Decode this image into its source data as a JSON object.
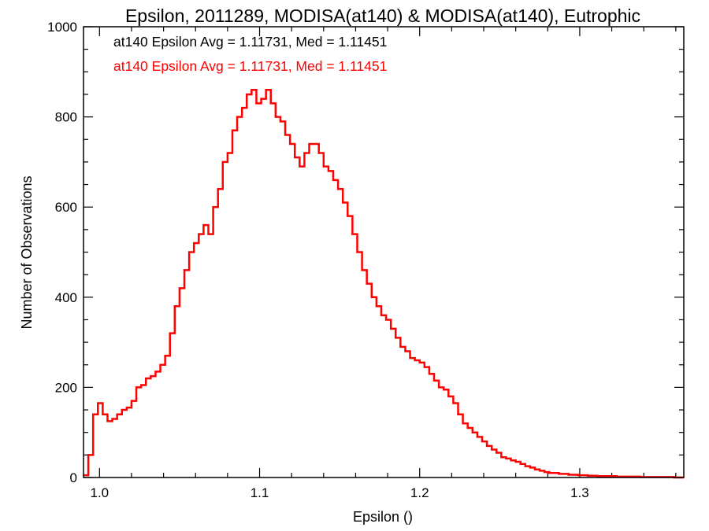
{
  "chart_data": {
    "type": "line",
    "title": "Epsilon, 2011289, MODISA(at140) & MODISA(at140), Eutrophic",
    "xlabel": "Epsilon ()",
    "ylabel": "Number of Observations",
    "xlim": [
      0.99,
      1.365
    ],
    "ylim": [
      0,
      1000
    ],
    "xticks": [
      1.0,
      1.1,
      1.2,
      1.3
    ],
    "xtick_labels": [
      "1.0",
      "1.1",
      "1.2",
      "1.3"
    ],
    "yticks": [
      0,
      200,
      400,
      600,
      800,
      1000
    ],
    "ytick_labels": [
      "0",
      "200",
      "400",
      "600",
      "800",
      "1000"
    ],
    "grid": false,
    "annotations": [
      {
        "text": "at140 Epsilon Avg = 1.11731, Med = 1.11451",
        "color": "#000000"
      },
      {
        "text": "at140 Epsilon Avg = 1.11731, Med = 1.11451",
        "color": "#ff0000"
      }
    ],
    "series": [
      {
        "color": "#ff0000",
        "x": [
          0.99,
          0.993,
          0.996,
          0.999,
          1.002,
          1.005,
          1.008,
          1.011,
          1.014,
          1.017,
          1.02,
          1.023,
          1.026,
          1.029,
          1.032,
          1.035,
          1.038,
          1.041,
          1.044,
          1.047,
          1.05,
          1.053,
          1.056,
          1.059,
          1.062,
          1.065,
          1.068,
          1.071,
          1.074,
          1.077,
          1.08,
          1.083,
          1.086,
          1.089,
          1.092,
          1.095,
          1.098,
          1.101,
          1.104,
          1.107,
          1.11,
          1.113,
          1.116,
          1.119,
          1.122,
          1.125,
          1.128,
          1.131,
          1.134,
          1.137,
          1.14,
          1.143,
          1.146,
          1.149,
          1.152,
          1.155,
          1.158,
          1.161,
          1.164,
          1.167,
          1.17,
          1.173,
          1.176,
          1.179,
          1.182,
          1.185,
          1.188,
          1.191,
          1.194,
          1.197,
          1.2,
          1.203,
          1.206,
          1.209,
          1.212,
          1.215,
          1.218,
          1.221,
          1.224,
          1.227,
          1.23,
          1.233,
          1.236,
          1.239,
          1.242,
          1.245,
          1.248,
          1.251,
          1.254,
          1.257,
          1.26,
          1.263,
          1.266,
          1.269,
          1.272,
          1.275,
          1.278,
          1.281,
          1.284,
          1.287,
          1.29,
          1.293,
          1.296,
          1.299,
          1.302,
          1.305,
          1.308,
          1.311,
          1.314,
          1.317,
          1.32,
          1.323,
          1.326,
          1.329,
          1.332,
          1.335,
          1.338,
          1.341,
          1.344,
          1.347,
          1.35,
          1.353,
          1.356,
          1.359,
          1.362
        ],
        "values": [
          5,
          50,
          140,
          165,
          140,
          125,
          130,
          140,
          150,
          155,
          170,
          200,
          205,
          220,
          225,
          235,
          250,
          270,
          320,
          380,
          420,
          460,
          500,
          520,
          540,
          560,
          540,
          600,
          640,
          700,
          720,
          770,
          800,
          820,
          850,
          860,
          830,
          840,
          860,
          830,
          800,
          790,
          760,
          740,
          710,
          690,
          720,
          740,
          740,
          720,
          690,
          680,
          660,
          640,
          610,
          580,
          540,
          500,
          460,
          430,
          400,
          380,
          360,
          350,
          330,
          310,
          290,
          280,
          265,
          260,
          255,
          245,
          230,
          215,
          200,
          195,
          180,
          165,
          140,
          120,
          110,
          100,
          90,
          80,
          70,
          62,
          55,
          45,
          42,
          38,
          35,
          30,
          25,
          22,
          18,
          15,
          12,
          10,
          10,
          8,
          8,
          6,
          6,
          5,
          5,
          4,
          4,
          3,
          3,
          3,
          3,
          2,
          2,
          2,
          2,
          2,
          1,
          1,
          1,
          1,
          1,
          1,
          1,
          0,
          0
        ]
      }
    ]
  }
}
